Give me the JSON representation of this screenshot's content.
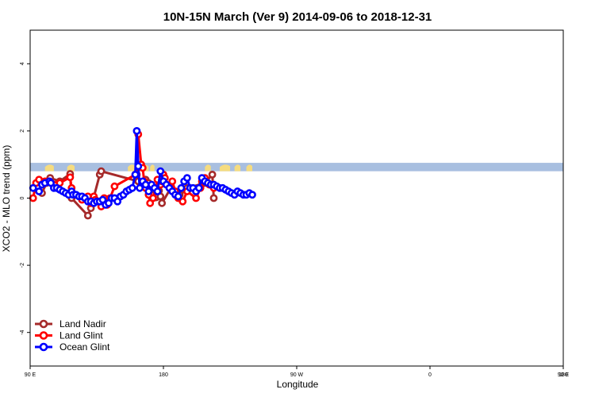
{
  "chart_data": {
    "type": "line",
    "title": "10N-15N March (Ver 9)   2014-09-06 to 2018-12-31",
    "xlabel": "Longitude",
    "ylabel": "XCO2 - MLO trend (ppm)",
    "xlim": [
      90,
      450
    ],
    "ylim": [
      -5,
      5
    ],
    "x_ticks": [
      {
        "value": 90,
        "label": "90 E"
      },
      {
        "value": 180,
        "label": "180"
      },
      {
        "value": 270,
        "label": "90 W"
      },
      {
        "value": 360,
        "label": "0"
      },
      {
        "value": 450,
        "label": "90 E"
      },
      {
        "value": 540,
        "label": "180"
      }
    ],
    "y_ticks": [
      {
        "value": -4,
        "label": "-4"
      },
      {
        "value": -2,
        "label": "-2"
      },
      {
        "value": 0,
        "label": "0"
      },
      {
        "value": 2,
        "label": "2"
      },
      {
        "value": 4,
        "label": "4"
      }
    ],
    "band": {
      "y_low": 0.8,
      "y_high": 1.05,
      "color": "#a8bfe0",
      "land_color": "#f5dc80"
    },
    "series": [
      {
        "name": "Land Nadir",
        "color": "#a52a2a",
        "x": [
          98,
          101,
          103.5,
          110,
          117,
          118,
          129,
          131,
          137,
          138,
          163,
          166,
          168,
          170,
          175,
          177,
          178,
          179,
          185,
          188,
          191,
          193,
          196,
          208,
          213,
          214
        ],
        "values": [
          0.15,
          0.45,
          0.6,
          0.5,
          0.72,
          0.0,
          -0.52,
          -0.3,
          0.7,
          0.8,
          0.5,
          0.35,
          0.55,
          0.45,
          0.02,
          0.22,
          0.05,
          -0.15,
          0.3,
          0.15,
          0.1,
          0.25,
          0.3,
          0.45,
          0.7,
          0.0
        ]
      },
      {
        "name": "Land Glint",
        "color": "#ff0000",
        "x": [
          92,
          94,
          96,
          98,
          100,
          103,
          110,
          117,
          118,
          125,
          129,
          131,
          133,
          134,
          137,
          138,
          139,
          140,
          142,
          144,
          147,
          161,
          162,
          163,
          165,
          166,
          167,
          168,
          170,
          171,
          173,
          175,
          176,
          178,
          179,
          180,
          181,
          184,
          186,
          188,
          190,
          193,
          196,
          202,
          205,
          206,
          208,
          211,
          214
        ],
        "values": [
          0.0,
          0.45,
          0.55,
          0.4,
          0.5,
          0.5,
          0.45,
          0.62,
          0.3,
          -0.05,
          0.05,
          -0.15,
          0.05,
          -0.05,
          -0.1,
          -0.25,
          -0.1,
          0.0,
          -0.2,
          0.0,
          0.35,
          0.7,
          0.7,
          1.9,
          1.0,
          0.9,
          0.5,
          0.3,
          0.1,
          -0.15,
          0.0,
          0.3,
          0.55,
          0.4,
          0.5,
          0.7,
          0.6,
          0.3,
          0.5,
          0.2,
          0.0,
          -0.1,
          0.2,
          0.0,
          0.3,
          0.5,
          0.6,
          0.4,
          0.3
        ]
      },
      {
        "name": "Ocean Glint",
        "color": "#0000ff",
        "x": [
          92,
          96,
          98,
          100,
          103,
          104,
          106,
          108,
          110,
          112,
          114,
          116,
          118,
          119,
          121,
          123,
          125,
          127,
          129,
          131,
          133,
          135,
          137,
          139,
          141,
          143,
          145,
          147,
          149,
          151,
          153,
          155,
          157,
          159,
          161,
          162,
          163,
          164,
          166,
          168,
          170,
          172,
          174,
          176,
          178,
          180,
          182,
          184,
          186,
          188,
          190,
          192,
          194,
          196,
          198,
          200,
          202,
          204,
          206,
          208,
          210,
          212,
          214,
          216,
          218,
          220,
          222,
          224,
          226,
          228,
          230,
          232,
          234,
          236,
          238,
          240
        ],
        "values": [
          0.3,
          0.2,
          0.4,
          0.45,
          0.5,
          0.45,
          0.3,
          0.3,
          0.25,
          0.2,
          0.15,
          0.1,
          0.2,
          0.1,
          0.1,
          0.05,
          0.05,
          0.0,
          -0.1,
          -0.1,
          -0.15,
          -0.1,
          -0.1,
          -0.05,
          -0.2,
          -0.15,
          0.0,
          0.0,
          -0.1,
          0.05,
          0.1,
          0.2,
          0.25,
          0.3,
          0.7,
          2.0,
          0.95,
          0.3,
          0.5,
          0.4,
          0.2,
          0.4,
          0.3,
          0.2,
          0.8,
          0.5,
          0.4,
          0.3,
          0.2,
          0.1,
          0.05,
          0.3,
          0.5,
          0.6,
          0.3,
          0.3,
          0.2,
          0.3,
          0.6,
          0.5,
          0.45,
          0.4,
          0.4,
          0.35,
          0.3,
          0.3,
          0.25,
          0.2,
          0.15,
          0.1,
          0.2,
          0.15,
          0.1,
          0.1,
          0.15,
          0.1
        ]
      }
    ],
    "legend": {
      "position": "bottom-left",
      "entries": [
        "Land Nadir",
        "Land Glint",
        "Ocean Glint"
      ]
    }
  }
}
